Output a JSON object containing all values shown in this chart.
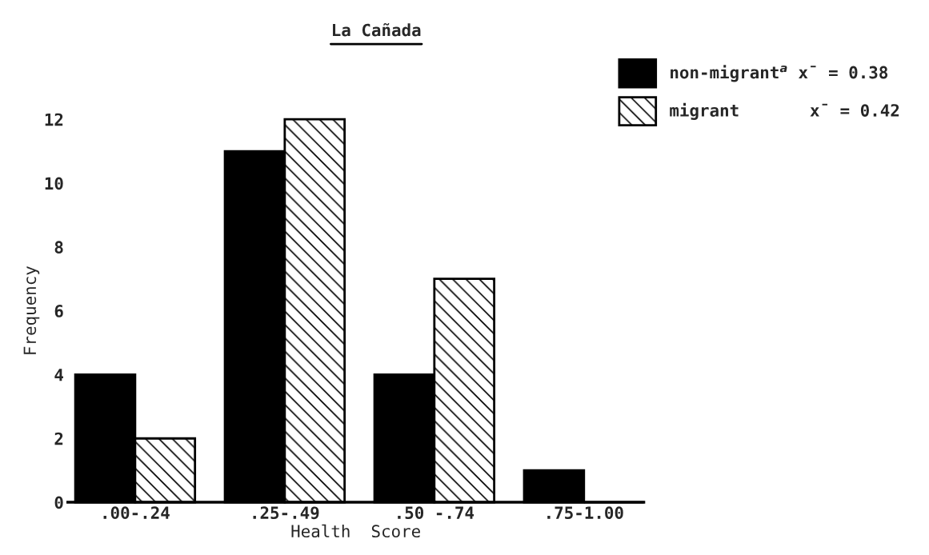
{
  "chart_data": {
    "type": "bar",
    "title": "La Cañada",
    "xlabel": "Health  Score",
    "ylabel": "Frequency",
    "categories": [
      ".00-.24",
      ".25-.49",
      ".50 -.74",
      ".75-1.00"
    ],
    "series": [
      {
        "name": "non-migrant$^{a}$ x̄ = 0.38",
        "color": "#000000",
        "values": [
          4,
          11,
          4,
          1
        ]
      },
      {
        "name": "migrant       x̄ = 0.42",
        "color": "#000000",
        "values": [
          2,
          12,
          7,
          0
        ]
      }
    ],
    "ylim": [
      0,
      12
    ],
    "yticks": [
      0,
      2,
      4,
      6,
      8,
      10,
      12
    ],
    "grid": false,
    "legend": "top right"
  }
}
